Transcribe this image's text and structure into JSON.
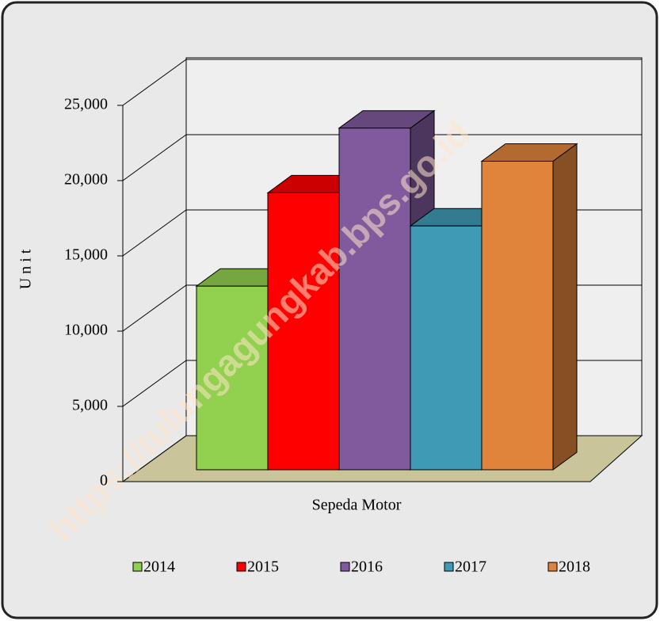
{
  "chart_data": {
    "type": "bar3d",
    "categories": [
      "Sepeda Motor"
    ],
    "y_label": "U n i t",
    "watermark": "https://tulungagungkab.bps.go.id",
    "series": [
      {
        "name": "2014",
        "color": "#92d050",
        "values": [
          12200
        ]
      },
      {
        "name": "2015",
        "color": "#ff0000",
        "values": [
          18400
        ]
      },
      {
        "name": "2016",
        "color": "#7f5a9c",
        "values": [
          22700
        ]
      },
      {
        "name": "2017",
        "color": "#3f9ab5",
        "values": [
          16200
        ]
      },
      {
        "name": "2018",
        "color": "#e0843c",
        "values": [
          20500
        ]
      }
    ],
    "ylim": [
      0,
      25000
    ],
    "yticks": [
      0,
      {
        "value": 5000,
        "label": "5,000"
      },
      {
        "value": 10000,
        "label": "10,000"
      },
      {
        "value": 15000,
        "label": "15,000"
      },
      {
        "value": 20000,
        "label": "20,000"
      },
      {
        "value": 25000,
        "label": "25,000"
      }
    ],
    "grid": true
  }
}
